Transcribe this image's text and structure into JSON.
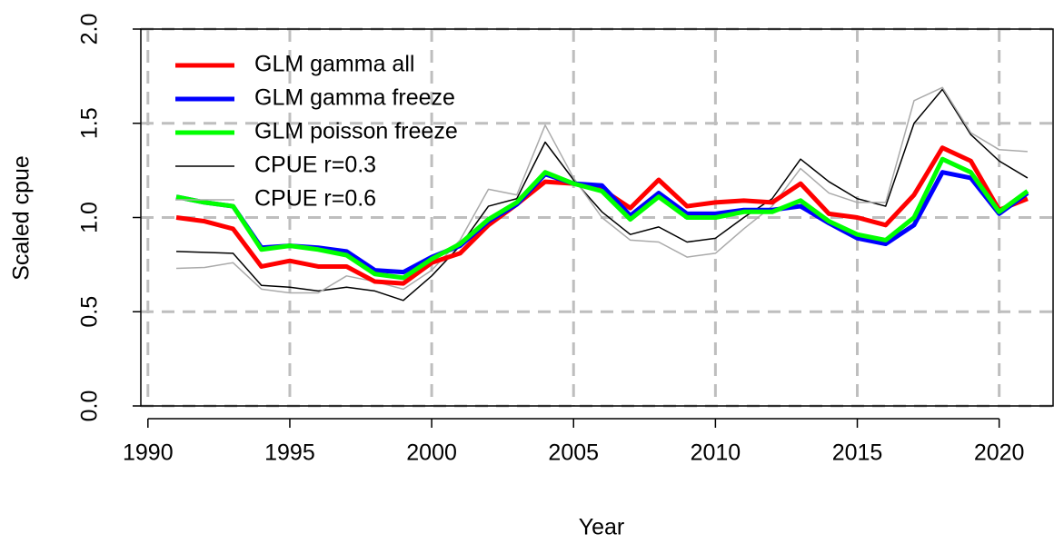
{
  "chart_data": {
    "type": "line",
    "x_label": "Year",
    "y_label": "Scaled cpue",
    "x": [
      1991,
      1992,
      1993,
      1994,
      1995,
      1996,
      1997,
      1998,
      1999,
      2000,
      2001,
      2002,
      2003,
      2004,
      2005,
      2006,
      2007,
      2008,
      2009,
      2010,
      2011,
      2012,
      2013,
      2014,
      2015,
      2016,
      2017,
      2018,
      2019,
      2020,
      2021
    ],
    "series": [
      {
        "name": "GLM gamma all",
        "color": "#ff0000",
        "linewidth": 5,
        "values": [
          1.0,
          0.98,
          0.94,
          0.74,
          0.77,
          0.74,
          0.74,
          0.66,
          0.65,
          0.76,
          0.81,
          0.96,
          1.07,
          1.19,
          1.18,
          1.15,
          1.05,
          1.2,
          1.06,
          1.08,
          1.09,
          1.08,
          1.18,
          1.02,
          1.0,
          0.96,
          1.12,
          1.37,
          1.3,
          1.04,
          1.1
        ]
      },
      {
        "name": "GLM gamma freeze",
        "color": "#0000ff",
        "linewidth": 5,
        "values": [
          1.11,
          1.08,
          1.06,
          0.84,
          0.85,
          0.84,
          0.82,
          0.72,
          0.71,
          0.79,
          0.85,
          0.98,
          1.07,
          1.23,
          1.18,
          1.17,
          1.01,
          1.13,
          1.02,
          1.02,
          1.04,
          1.04,
          1.06,
          0.97,
          0.89,
          0.86,
          0.96,
          1.24,
          1.21,
          1.02,
          1.13
        ]
      },
      {
        "name": "GLM poisson freeze",
        "color": "#00ff00",
        "linewidth": 5,
        "values": [
          1.11,
          1.08,
          1.06,
          0.83,
          0.85,
          0.83,
          0.8,
          0.7,
          0.68,
          0.78,
          0.86,
          0.99,
          1.08,
          1.24,
          1.18,
          1.14,
          0.99,
          1.11,
          1.0,
          1.0,
          1.03,
          1.03,
          1.09,
          0.98,
          0.91,
          0.88,
          1.0,
          1.31,
          1.24,
          1.03,
          1.14
        ]
      },
      {
        "name": "CPUE r=0.3",
        "color": "#000000",
        "linewidth": 1.5,
        "values": [
          0.82,
          0.815,
          0.81,
          0.64,
          0.63,
          0.61,
          0.63,
          0.61,
          0.56,
          0.69,
          0.85,
          1.06,
          1.1,
          1.4,
          1.2,
          1.03,
          0.91,
          0.95,
          0.87,
          0.89,
          1.0,
          1.1,
          1.31,
          1.19,
          1.1,
          1.06,
          1.5,
          1.68,
          1.44,
          1.3,
          1.21
        ]
      },
      {
        "name": "CPUE r=0.6",
        "color": "#aaaaaa",
        "linewidth": 1.5,
        "values": [
          0.73,
          0.735,
          0.76,
          0.62,
          0.6,
          0.6,
          0.69,
          0.66,
          0.62,
          0.72,
          0.88,
          1.15,
          1.12,
          1.49,
          1.21,
          1.0,
          0.88,
          0.87,
          0.79,
          0.81,
          0.94,
          1.06,
          1.26,
          1.13,
          1.08,
          1.08,
          1.62,
          1.69,
          1.45,
          1.36,
          1.35
        ]
      }
    ],
    "xlim": [
      1989.75,
      2021.9
    ],
    "ylim": [
      0,
      2
    ],
    "xticks": [
      1990,
      1995,
      2000,
      2005,
      2010,
      2015,
      2020
    ],
    "yticks": [
      {
        "value": 0,
        "label": "0.0"
      },
      0.5,
      {
        "value": 1,
        "label": "1.0"
      },
      1.5,
      {
        "value": 2,
        "label": "2.0"
      }
    ],
    "grid": true,
    "legend": "top-left"
  }
}
